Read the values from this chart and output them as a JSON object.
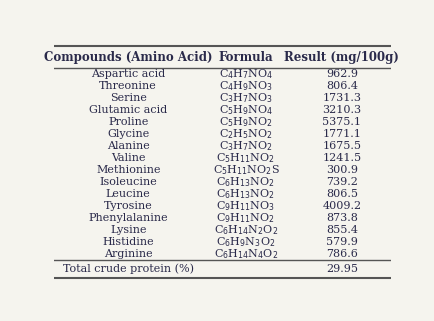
{
  "columns": [
    "Compounds (Amino Acid)",
    "Formula",
    "Result (mg/100g)"
  ],
  "rows": [
    [
      "Aspartic acid",
      "C$_4$H$_7$NO$_4$",
      "962.9"
    ],
    [
      "Threonine",
      "C$_4$H$_9$NO$_3$",
      "806.4"
    ],
    [
      "Serine",
      "C$_3$H$_7$NO$_3$",
      "1731.3"
    ],
    [
      "Glutamic acid",
      "C$_5$H$_9$NO$_4$",
      "3210.3"
    ],
    [
      "Proline",
      "C$_5$H$_9$NO$_2$",
      "5375.1"
    ],
    [
      "Glycine",
      "C$_2$H$_5$NO$_2$",
      "1771.1"
    ],
    [
      "Alanine",
      "C$_3$H$_7$NO$_2$",
      "1675.5"
    ],
    [
      "Valine",
      "C$_5$H$_{11}$NO$_2$",
      "1241.5"
    ],
    [
      "Methionine",
      "C$_5$H$_{11}$NO$_2$S",
      "300.9"
    ],
    [
      "Isoleucine",
      "C$_6$H$_{13}$NO$_2$",
      "739.2"
    ],
    [
      "Leucine",
      "C$_6$H$_{13}$NO$_2$",
      "806.5"
    ],
    [
      "Tyrosine",
      "C$_9$H$_{11}$NO$_3$",
      "4009.2"
    ],
    [
      "Phenylalanine",
      "C$_9$H$_{11}$NO$_2$",
      "873.8"
    ],
    [
      "Lysine",
      "C$_6$H$_{14}$N$_2$O$_2$",
      "855.4"
    ],
    [
      "Histidine",
      "C$_6$H$_9$N$_3$O$_2$",
      "579.9"
    ],
    [
      "Arginine",
      "C$_6$H$_{14}$N$_4$O$_2$",
      "786.6"
    ]
  ],
  "footer": [
    "Total crude protein (%)",
    "",
    "29.95"
  ],
  "header_fontsize": 8.5,
  "row_fontsize": 8.0,
  "bg_color": "#f5f4ee",
  "text_color": "#2a2a4a",
  "line_color": "#555555"
}
